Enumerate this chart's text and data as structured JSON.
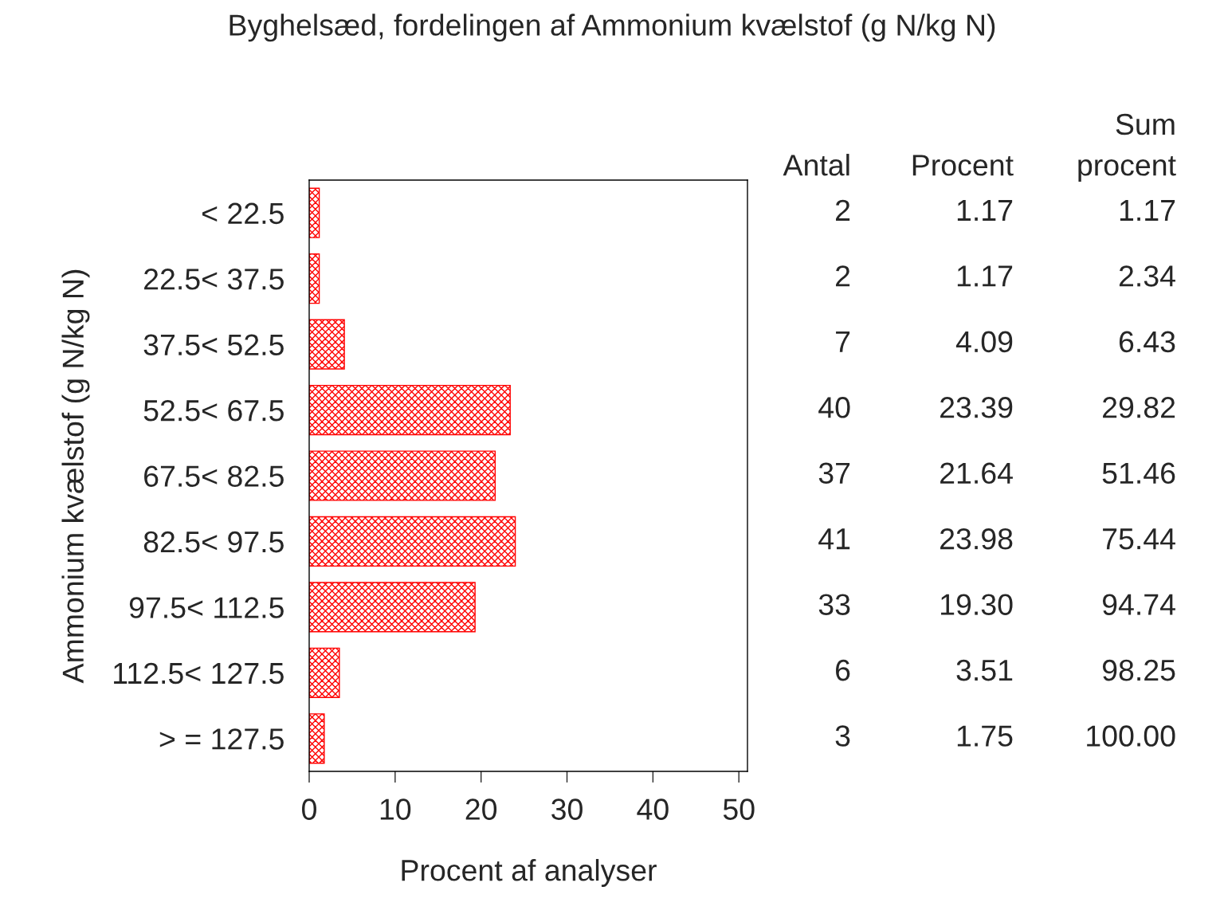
{
  "chart_data": {
    "type": "bar",
    "orientation": "horizontal",
    "title": "Byghelsæd, fordelingen af Ammonium kvælstof (g N/kg N)",
    "xlabel": "Procent af analyser",
    "ylabel": "Ammonium kvælstof (g N/kg N)",
    "categories": [
      "< 22.5",
      "22.5< 37.5",
      "37.5< 52.5",
      "52.5< 67.5",
      "67.5< 82.5",
      "82.5< 97.5",
      "97.5< 112.5",
      "112.5< 127.5",
      "> = 127.5"
    ],
    "values": [
      1.17,
      1.17,
      4.09,
      23.39,
      21.64,
      23.98,
      19.3,
      3.51,
      1.75
    ],
    "value_labels": [
      "1.17",
      "1.17",
      "4.09",
      "23.39",
      "21.64",
      "23.98",
      "19.30",
      "3.51",
      "1.75"
    ],
    "color": "#ff0000",
    "xlim": [
      0,
      51
    ],
    "xticks": [
      0,
      10,
      20,
      30,
      40,
      50
    ],
    "grid": false,
    "legend": false,
    "annotations": [
      "Antal",
      "Procent",
      "Sum\nprocent",
      "2",
      "1.17",
      "2",
      "2.34",
      "7",
      "6.43",
      "40",
      "29.82",
      "37",
      "51.46",
      "41",
      "75.44",
      "33",
      "94.74",
      "6",
      "98.25",
      "3",
      "100.00"
    ]
  }
}
